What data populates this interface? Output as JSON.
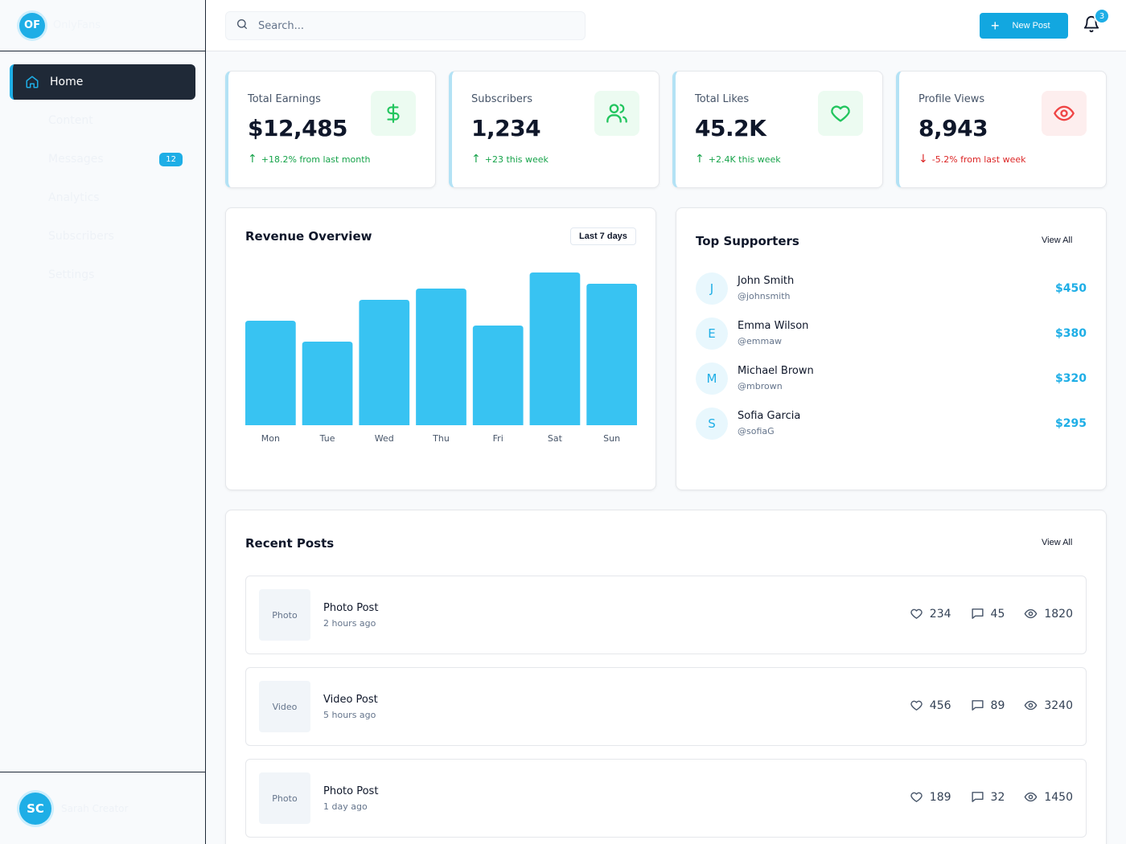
{
  "sidebar": {
    "logo": "OF",
    "brand": "OnlyFans",
    "nav": [
      {
        "label": "Home",
        "active": true,
        "badge": ""
      },
      {
        "label": "Content",
        "active": false,
        "badge": ""
      },
      {
        "label": "Messages",
        "active": false,
        "badge": "12"
      },
      {
        "label": "Analytics",
        "active": false,
        "badge": ""
      },
      {
        "label": "Subscribers",
        "active": false,
        "badge": ""
      },
      {
        "label": "Settings",
        "active": false,
        "badge": ""
      }
    ],
    "user": {
      "initials": "SC",
      "name": "Sarah Creator"
    }
  },
  "header": {
    "search_placeholder": "Search...",
    "new_post_label": "New Post",
    "notification_count": "3"
  },
  "stats": [
    {
      "label": "Total Earnings",
      "value": "$12,485",
      "change": "+18.2% from last month",
      "direction": "up",
      "icon": "dollar-icon"
    },
    {
      "label": "Subscribers",
      "value": "1,234",
      "change": "+23 this week",
      "direction": "up",
      "icon": "users-icon"
    },
    {
      "label": "Total Likes",
      "value": "45.2K",
      "change": "+2.4K this week",
      "direction": "up",
      "icon": "heart-icon"
    },
    {
      "label": "Profile Views",
      "value": "8,943",
      "change": "-5.2% from last week",
      "direction": "down",
      "icon": "eye-icon"
    }
  ],
  "revenue": {
    "title": "Revenue Overview",
    "range_label": "Last 7 days"
  },
  "chart_data": {
    "type": "bar",
    "title": "Revenue Overview",
    "categories": [
      "Mon",
      "Tue",
      "Wed",
      "Thu",
      "Fri",
      "Sat",
      "Sun"
    ],
    "values": [
      65,
      52,
      78,
      85,
      62,
      95,
      88
    ],
    "ylim": [
      0,
      100
    ],
    "grid": false,
    "color": "#38c3f2"
  },
  "supporters": {
    "title": "Top Supporters",
    "view_all": "View All",
    "items": [
      {
        "initial": "J",
        "name": "John Smith",
        "handle": "@johnsmith",
        "amount": "$450"
      },
      {
        "initial": "E",
        "name": "Emma Wilson",
        "handle": "@emmaw",
        "amount": "$380"
      },
      {
        "initial": "M",
        "name": "Michael Brown",
        "handle": "@mbrown",
        "amount": "$320"
      },
      {
        "initial": "S",
        "name": "Sofia Garcia",
        "handle": "@sofiaG",
        "amount": "$295"
      }
    ]
  },
  "posts": {
    "title": "Recent Posts",
    "view_all": "View All",
    "items": [
      {
        "thumb": "Photo",
        "title": "Photo Post",
        "time": "2 hours ago",
        "likes": "234",
        "comments": "45",
        "views": "1820"
      },
      {
        "thumb": "Video",
        "title": "Video Post",
        "time": "5 hours ago",
        "likes": "456",
        "comments": "89",
        "views": "3240"
      },
      {
        "thumb": "Photo",
        "title": "Photo Post",
        "time": "1 day ago",
        "likes": "189",
        "comments": "32",
        "views": "1450"
      }
    ]
  },
  "colors": {
    "accent": "#1eaee6",
    "sidebar_active": "#1f2937",
    "up": "#16a34a",
    "down": "#dc2626"
  }
}
